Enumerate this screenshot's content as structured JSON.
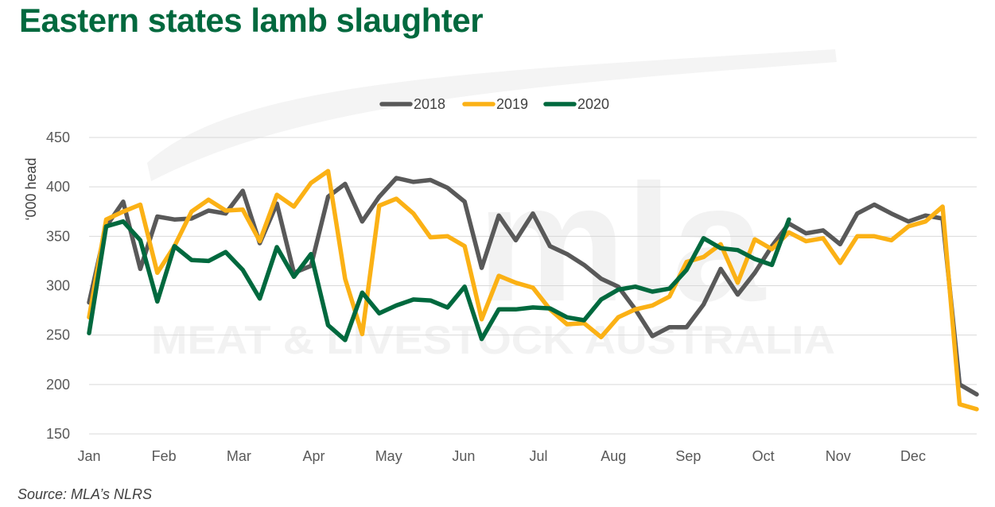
{
  "title": "Eastern states lamb slaughter",
  "source": "Source: MLA’s NLRS",
  "watermark": {
    "logo": "mla",
    "text": "MEAT & LIVESTOCK AUSTRALIA"
  },
  "colors": {
    "title": "#00693e",
    "grid": "#d9d9d9",
    "watermark": "#f2f2f2"
  },
  "chart_data": {
    "type": "line",
    "title": "Eastern states lamb slaughter",
    "xlabel": "",
    "ylabel": "‘000 head",
    "ylim": [
      150,
      450
    ],
    "yticks": [
      150,
      200,
      250,
      300,
      350,
      400,
      450
    ],
    "xticks": [
      "Jan",
      "Feb",
      "Mar",
      "Apr",
      "May",
      "Jun",
      "Jul",
      "Aug",
      "Sep",
      "Oct",
      "Nov",
      "Dec"
    ],
    "grid": true,
    "legend": "top-center",
    "x_unit": "week of year",
    "series": [
      {
        "name": "2018",
        "color": "#595959",
        "x": [
          1,
          2,
          3,
          4,
          5,
          6,
          7,
          8,
          9,
          10,
          11,
          12,
          13,
          14,
          15,
          16,
          17,
          18,
          19,
          20,
          21,
          22,
          23,
          24,
          25,
          26,
          27,
          28,
          29,
          30,
          31,
          32,
          33,
          34,
          35,
          36,
          37,
          38,
          39,
          40,
          41,
          42,
          43,
          44,
          45,
          46,
          47,
          48,
          49,
          50,
          51,
          52,
          53
        ],
        "values": [
          283,
          360,
          385,
          317,
          370,
          367,
          368,
          376,
          373,
          396,
          343,
          383,
          313,
          320,
          390,
          403,
          365,
          390,
          409,
          405,
          407,
          399,
          385,
          318,
          371,
          346,
          373,
          340,
          332,
          321,
          307,
          299,
          276,
          249,
          258,
          258,
          281,
          317,
          291,
          313,
          340,
          363,
          353,
          356,
          342,
          373,
          382,
          373,
          365,
          371,
          368,
          200,
          190
        ]
      },
      {
        "name": "2019",
        "color": "#fbb115",
        "x": [
          1,
          2,
          3,
          4,
          5,
          6,
          7,
          8,
          9,
          10,
          11,
          12,
          13,
          14,
          15,
          16,
          17,
          18,
          19,
          20,
          21,
          22,
          23,
          24,
          25,
          26,
          27,
          28,
          29,
          30,
          31,
          32,
          33,
          34,
          35,
          36,
          37,
          38,
          39,
          40,
          41,
          42,
          43,
          44,
          45,
          46,
          47,
          48,
          49,
          50,
          51,
          52,
          53
        ],
        "values": [
          268,
          367,
          375,
          382,
          313,
          340,
          375,
          387,
          376,
          377,
          345,
          392,
          380,
          404,
          416,
          307,
          251,
          381,
          388,
          373,
          349,
          350,
          340,
          266,
          310,
          303,
          298,
          276,
          261,
          262,
          248,
          268,
          276,
          280,
          289,
          324,
          329,
          342,
          303,
          347,
          337,
          354,
          345,
          348,
          323,
          350,
          350,
          346,
          360,
          365,
          380,
          180,
          175
        ]
      },
      {
        "name": "2020",
        "color": "#00693e",
        "x": [
          1,
          2,
          3,
          4,
          5,
          6,
          7,
          8,
          9,
          10,
          11,
          12,
          13,
          14,
          15,
          16,
          17,
          18,
          19,
          20,
          21,
          22,
          23,
          24,
          25,
          26,
          27,
          28,
          29,
          30,
          31,
          32,
          33,
          34,
          35,
          36,
          37,
          38,
          39,
          40,
          41,
          42
        ],
        "values": [
          252,
          360,
          365,
          346,
          284,
          340,
          326,
          325,
          334,
          316,
          287,
          339,
          309,
          332,
          260,
          245,
          293,
          272,
          280,
          286,
          285,
          278,
          299,
          246,
          276,
          276,
          278,
          277,
          268,
          265,
          286,
          296,
          299,
          294,
          297,
          316,
          348,
          338,
          336,
          327,
          321,
          367
        ]
      }
    ]
  }
}
